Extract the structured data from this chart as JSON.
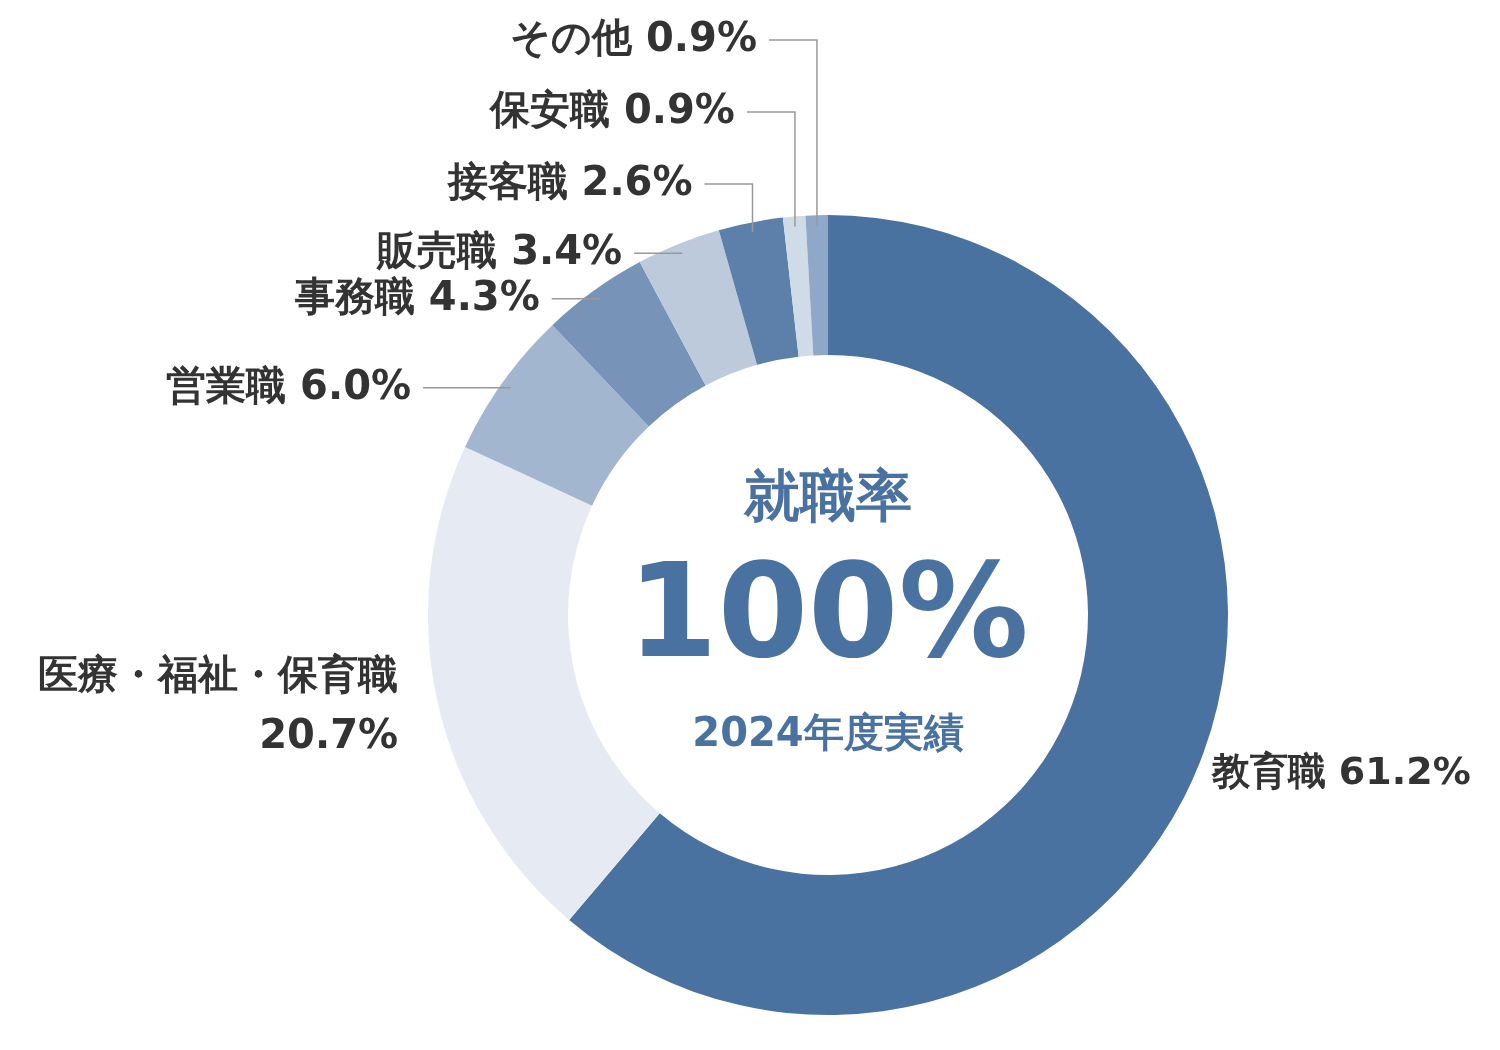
{
  "chart_data": {
    "type": "donut",
    "categories": [
      "教育職",
      "医療・福祉・保育職",
      "営業職",
      "事務職",
      "販売職",
      "接客職",
      "保安職",
      "その他"
    ],
    "values": [
      61.2,
      20.7,
      6.0,
      4.3,
      3.4,
      2.6,
      0.9,
      0.9
    ],
    "colors": [
      "#4a72a0",
      "#e6ebf3",
      "#a3b6cf",
      "#7794b8",
      "#bccadc",
      "#5d80aa",
      "#d0dbe8",
      "#8fa8c8"
    ],
    "value_labels": [
      "61.2%",
      "20.7%",
      "6.0%",
      "4.3%",
      "3.4%",
      "2.6%",
      "0.9%",
      "0.9%"
    ],
    "annotations": [
      "就職率",
      "100%",
      "2024年度実績"
    ]
  }
}
